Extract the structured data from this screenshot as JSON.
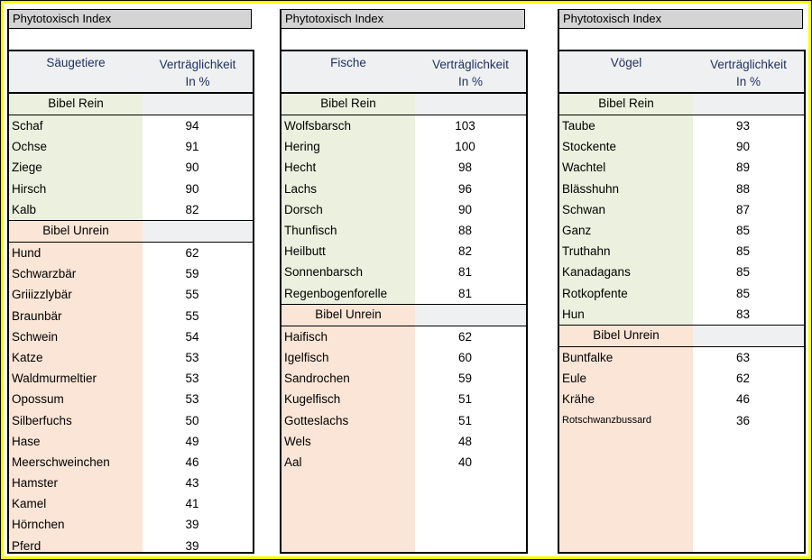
{
  "page": {
    "frame_color": "#ffff00",
    "title_bar_bg": "#d4d4d4",
    "header_text_color": "#1f3263",
    "clean_color": "#ebf1de",
    "unclean_color": "#fbe5d6"
  },
  "tables": [
    {
      "title": "Phytotoxisch Index",
      "category": "Säugetiere",
      "value_header_line1": "Verträglichkeit",
      "value_header_line2": "In %",
      "sections": [
        {
          "label": "Bibel Rein",
          "type": "clean",
          "rows": [
            {
              "name": "Schaf",
              "value": "94"
            },
            {
              "name": "Ochse",
              "value": "91"
            },
            {
              "name": "Ziege",
              "value": "90"
            },
            {
              "name": "Hirsch",
              "value": "90"
            },
            {
              "name": "Kalb",
              "value": "82"
            }
          ]
        },
        {
          "label": "Bibel Unrein",
          "type": "unclean",
          "rows": [
            {
              "name": "Hund",
              "value": "62"
            },
            {
              "name": "Schwarzbär",
              "value": "59"
            },
            {
              "name": "Griiizzlybär",
              "value": "55"
            },
            {
              "name": "Braunbär",
              "value": "55"
            },
            {
              "name": "Schwein",
              "value": "54"
            },
            {
              "name": "Katze",
              "value": "53"
            },
            {
              "name": "Waldmurmeltier",
              "value": "53"
            },
            {
              "name": "Opossum",
              "value": "53"
            },
            {
              "name": "Silberfuchs",
              "value": "50"
            },
            {
              "name": "Hase",
              "value": "49"
            },
            {
              "name": "Meerschweinchen",
              "value": "46"
            },
            {
              "name": "Hamster",
              "value": "43"
            },
            {
              "name": "Kamel",
              "value": "41"
            },
            {
              "name": "Hörnchen",
              "value": "39"
            },
            {
              "name": "Pferd",
              "value": "39"
            }
          ]
        }
      ]
    },
    {
      "title": "Phytotoxisch Index",
      "category": "Fische",
      "value_header_line1": "Verträglichkeit",
      "value_header_line2": "In %",
      "sections": [
        {
          "label": "Bibel Rein",
          "type": "clean",
          "rows": [
            {
              "name": "Wolfsbarsch",
              "value": "103"
            },
            {
              "name": "Hering",
              "value": "100"
            },
            {
              "name": "Hecht",
              "value": "98"
            },
            {
              "name": "Lachs",
              "value": "96"
            },
            {
              "name": "Dorsch",
              "value": "90"
            },
            {
              "name": "Thunfisch",
              "value": "88"
            },
            {
              "name": "Heilbutt",
              "value": "82"
            },
            {
              "name": "Sonnenbarsch",
              "value": "81"
            },
            {
              "name": "Regenbogenforelle",
              "value": "81"
            }
          ]
        },
        {
          "label": "Bibel Unrein",
          "type": "unclean",
          "rows": [
            {
              "name": "Haifisch",
              "value": "62"
            },
            {
              "name": "Igelfisch",
              "value": "60"
            },
            {
              "name": "Sandrochen",
              "value": "59"
            },
            {
              "name": "Kugelfisch",
              "value": "51"
            },
            {
              "name": "Gotteslachs",
              "value": "51"
            },
            {
              "name": "Wels",
              "value": "48"
            },
            {
              "name": "Aal",
              "value": "40"
            }
          ]
        }
      ]
    },
    {
      "title": "Phytotoxisch Index",
      "category": "Vögel",
      "value_header_line1": "Verträglichkeit",
      "value_header_line2": "In %",
      "sections": [
        {
          "label": "Bibel Rein",
          "type": "clean",
          "rows": [
            {
              "name": "Taube",
              "value": "93"
            },
            {
              "name": "Stockente",
              "value": "90"
            },
            {
              "name": "Wachtel",
              "value": "89"
            },
            {
              "name": "Blässhuhn",
              "value": "88"
            },
            {
              "name": "Schwan",
              "value": "87"
            },
            {
              "name": "Ganz",
              "value": "85"
            },
            {
              "name": "Truthahn",
              "value": "85"
            },
            {
              "name": "Kanadagans",
              "value": "85"
            },
            {
              "name": "Rotkopfente",
              "value": "85"
            },
            {
              "name": "Hun",
              "value": "83"
            }
          ]
        },
        {
          "label": "Bibel Unrein",
          "type": "unclean",
          "rows": [
            {
              "name": "Buntfalke",
              "value": "63"
            },
            {
              "name": "Eule",
              "value": "62"
            },
            {
              "name": "Krähe",
              "value": "46"
            },
            {
              "name": "Rotschwanzbussard",
              "value": "36",
              "small": true
            }
          ]
        }
      ]
    }
  ]
}
